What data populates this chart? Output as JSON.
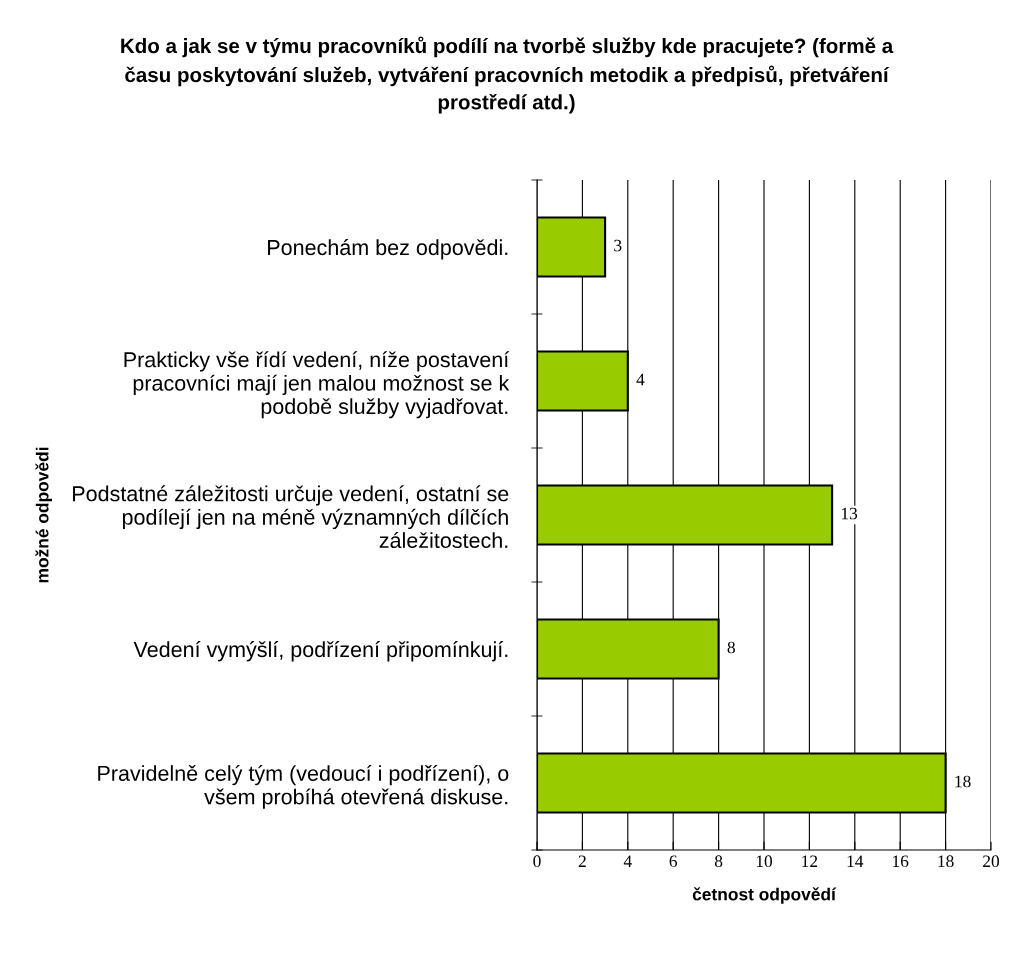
{
  "chart_data": {
    "type": "bar",
    "orientation": "horizontal",
    "title": "Kdo a jak se v týmu pracovníků podílí na tvorbě služby kde pracujete? (formě a\nčasu poskytování služeb, vytváření pracovních metodik a předpisů, přetváření\nprostředí atd.)",
    "xlabel": "četnost odpovědí",
    "ylabel": "možné odpovědi",
    "categories": [
      "Ponechám bez odpovědi.",
      "Prakticky vše řídí vedení, níže postavení\npracovníci mají jen malou možnost se k\npodobě služby vyjadřovat.",
      "Podstatné záležitosti určuje vedení, ostatní se\npodílejí jen na méně významných dílčích\nzáležitostech.",
      "Vedení vymýšlí, podřízení připomínkují.",
      "Pravidelně celý tým (vedoucí i podřízení), o\nvšem probíhá otevřená diskuse."
    ],
    "values": [
      3,
      4,
      13,
      8,
      18
    ],
    "color": "#99cc00",
    "xlim": [
      0,
      20
    ],
    "xticks": [
      0,
      2,
      4,
      6,
      8,
      10,
      12,
      14,
      16,
      18,
      20
    ],
    "grid": "x",
    "data_labels": true,
    "legend": false
  }
}
